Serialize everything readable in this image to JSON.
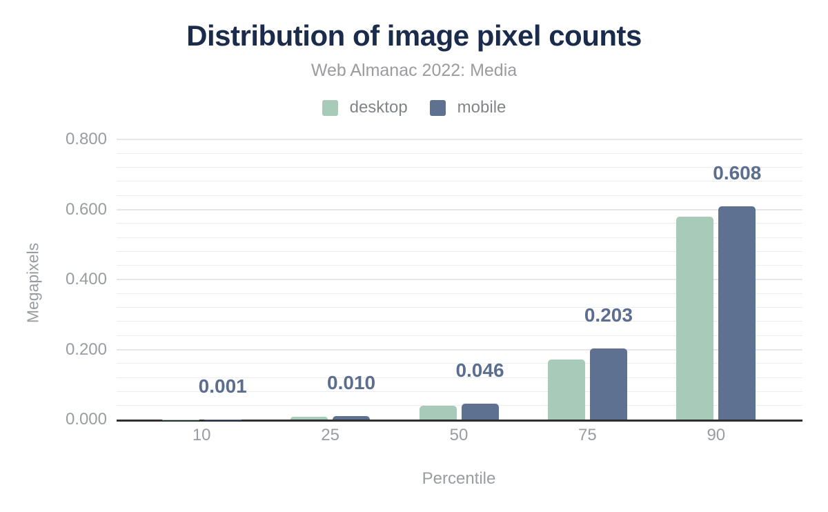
{
  "chart_data": {
    "type": "bar",
    "title": "Distribution of image pixel counts",
    "subtitle": "Web Almanac 2022: Media",
    "xlabel": "Percentile",
    "ylabel": "Megapixels",
    "categories": [
      "10",
      "25",
      "50",
      "75",
      "90"
    ],
    "series": [
      {
        "name": "desktop",
        "color": "#a8cbb9",
        "values": [
          0.001,
          0.008,
          0.04,
          0.172,
          0.58
        ]
      },
      {
        "name": "mobile",
        "color": "#5e7190",
        "values": [
          0.001,
          0.01,
          0.046,
          0.203,
          0.608
        ]
      }
    ],
    "data_labels": {
      "on_series": "mobile",
      "values": [
        "0.001",
        "0.010",
        "0.046",
        "0.203",
        "0.608"
      ],
      "color": "#5b6e8f"
    },
    "ylim": [
      0,
      0.8
    ],
    "yticks": [
      {
        "value": 0.0,
        "label": "0.000"
      },
      {
        "value": 0.2,
        "label": "0.200"
      },
      {
        "value": 0.4,
        "label": "0.400"
      },
      {
        "value": 0.6,
        "label": "0.600"
      },
      {
        "value": 0.8,
        "label": "0.800"
      }
    ],
    "y_minor_step": 0.04,
    "grid": true,
    "legend_position": "top"
  },
  "colors": {
    "title": "#1a2b4b",
    "subtitle": "#9b9ba0",
    "axis_text": "#989da2",
    "axis_line": "#2f2f2f",
    "grid_major": "#e5e7e9",
    "grid_minor": "#ededef",
    "data_label": "#5b6e8f"
  }
}
